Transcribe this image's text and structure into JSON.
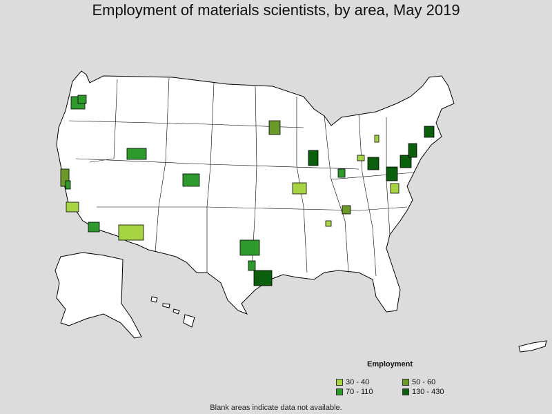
{
  "title": "Employment of materials scientists, by area, May 2019",
  "legend": {
    "title": "Employment",
    "items": [
      {
        "label": "30 - 40",
        "color": "#a6d443"
      },
      {
        "label": "50 - 60",
        "color": "#6b9a2a"
      },
      {
        "label": "70 - 110",
        "color": "#2e9a2e"
      },
      {
        "label": "130 - 430",
        "color": "#0b5e0b"
      }
    ]
  },
  "note": "Blank areas indicate data not available.",
  "colors": {
    "background": "#dcdcdc",
    "land": "#ffffff",
    "border": "#000000"
  }
}
